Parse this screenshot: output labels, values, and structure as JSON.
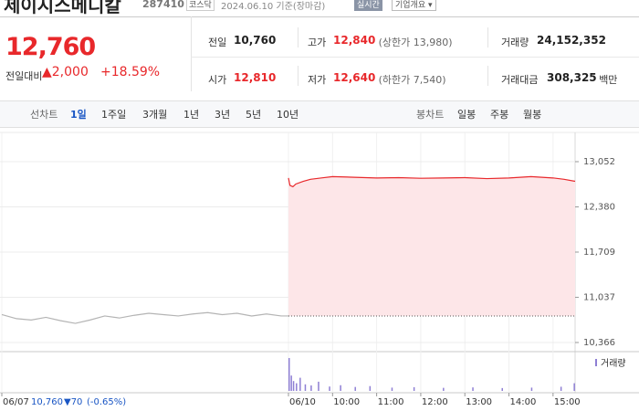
{
  "header": {
    "title": "제이시스메디칼",
    "code": "287410",
    "market": "코스닥",
    "date": "2024.06.10 기준(장마감)",
    "realtime": "실시간",
    "company": "기업개요 ▾"
  },
  "price": {
    "current": "12,760",
    "change_label": "전일대비",
    "change": "▲2,000",
    "rate": "+18.59%"
  },
  "stats": [
    {
      "label": "전일",
      "value": "10,760"
    },
    {
      "label": "고가",
      "value": "12,840",
      "note": "(상한가 13,980)"
    },
    {
      "label": "거래량",
      "value": "24,152,352"
    },
    {
      "label": "시가",
      "value": "12,810"
    },
    {
      "label": "저가",
      "value": "12,640",
      "note": "(하한가 7,540)"
    },
    {
      "label": "거래대금",
      "value": "308,325",
      "unit": "백만"
    }
  ],
  "tabs": {
    "line_label": "선차트",
    "line": [
      "1일",
      "1주일",
      "3개월",
      "1년",
      "3년",
      "5년",
      "10년"
    ],
    "candle_label": "봉차트",
    "candle": [
      "일봉",
      "주봉",
      "월봉"
    ]
  },
  "chart_data": [
    {
      "type": "line",
      "xlim": [
        0,
        780
      ],
      "ylim": [
        10366,
        13052
      ],
      "xticks": [
        {
          "value": 0,
          "label": "06/07"
        },
        {
          "value": 390,
          "label": "06/10"
        },
        {
          "value": 450,
          "label": "10:00"
        },
        {
          "value": 510,
          "label": "11:00"
        },
        {
          "value": 570,
          "label": "12:00"
        },
        {
          "value": 630,
          "label": "13:00"
        },
        {
          "value": 690,
          "label": "14:00"
        },
        {
          "value": 750,
          "label": "15:00"
        }
      ],
      "yticks": [
        {
          "value": 10366,
          "label": "10,366"
        },
        {
          "value": 11037,
          "label": "11,037"
        },
        {
          "value": 11709,
          "label": "11,709"
        },
        {
          "value": 12380,
          "label": "12,380"
        },
        {
          "value": 13052,
          "label": "13,052"
        }
      ],
      "reference": 10760,
      "grid": true,
      "series": [
        {
          "color": "#b4b4b4",
          "x": [
            0,
            20,
            40,
            60,
            80,
            100,
            120,
            140,
            160,
            180,
            200,
            220,
            240,
            260,
            280,
            300,
            320,
            340,
            360,
            380,
            390
          ],
          "values": [
            10780,
            10720,
            10700,
            10740,
            10690,
            10650,
            10700,
            10760,
            10730,
            10770,
            10800,
            10780,
            10760,
            10790,
            10810,
            10780,
            10800,
            10760,
            10790,
            10760,
            10760
          ]
        },
        {
          "color": "#e8282b",
          "fill": "#fde6e8",
          "x": [
            390,
            392,
            396,
            400,
            410,
            420,
            435,
            450,
            480,
            510,
            540,
            570,
            600,
            630,
            660,
            690,
            720,
            750,
            765,
            780
          ],
          "values": [
            12810,
            12700,
            12680,
            12720,
            12760,
            12790,
            12810,
            12830,
            12820,
            12810,
            12815,
            12805,
            12810,
            12815,
            12800,
            12810,
            12830,
            12810,
            12790,
            12760
          ]
        }
      ]
    },
    {
      "type": "bar",
      "name": "거래량",
      "color": "#8e7fd4",
      "x": [
        390,
        393,
        396,
        400,
        405,
        412,
        420,
        430,
        445,
        460,
        480,
        500,
        530,
        560,
        600,
        640,
        680,
        720,
        760,
        778
      ],
      "values": [
        1500000,
        700000,
        450000,
        350000,
        600000,
        300000,
        250000,
        420000,
        200000,
        260000,
        180000,
        220000,
        150000,
        170000,
        140000,
        160000,
        130000,
        150000,
        190000,
        350000
      ]
    }
  ],
  "footer": {
    "price": "10,760",
    "change": "▼70",
    "rate": "(-0.65%)"
  }
}
